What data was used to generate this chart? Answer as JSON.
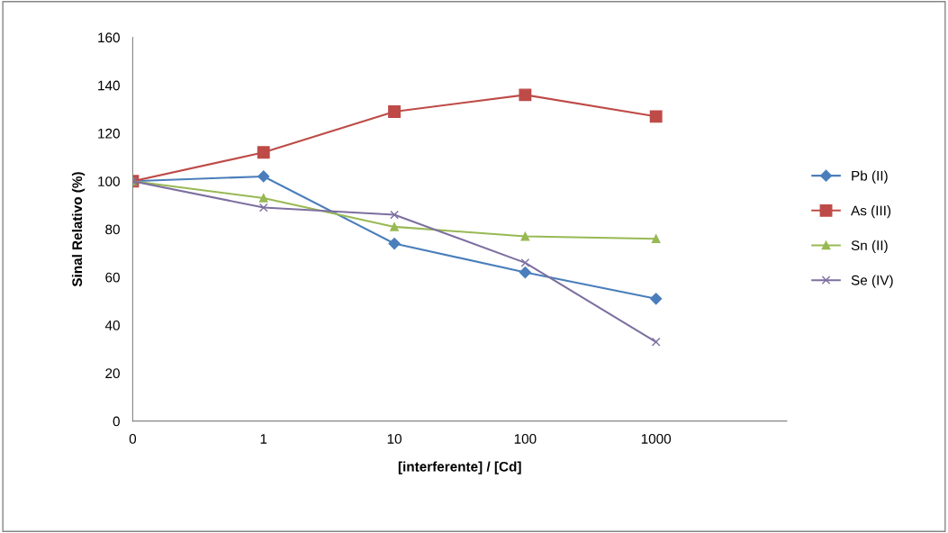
{
  "chart_data": {
    "type": "line",
    "xlabel": "[interferente] / [Cd]",
    "ylabel": "Sinal Relativo (%)",
    "categories": [
      "0",
      "1",
      "10",
      "100",
      "1000",
      null
    ],
    "ylim": [
      0,
      160
    ],
    "yticks": [
      0,
      20,
      40,
      60,
      80,
      100,
      120,
      140,
      160
    ],
    "grid": false,
    "legend": "right",
    "series": [
      {
        "name": "Pb (II)",
        "color": "#4a7ebb",
        "marker": "diamond",
        "values": [
          100,
          102,
          74,
          62,
          51,
          null
        ]
      },
      {
        "name": "As (III)",
        "color": "#be4b48",
        "marker": "square",
        "values": [
          100,
          112,
          129,
          136,
          127,
          null
        ]
      },
      {
        "name": "Sn (II)",
        "color": "#98b954",
        "marker": "triangle",
        "values": [
          100,
          93,
          81,
          77,
          76,
          null
        ]
      },
      {
        "name": "Se (IV)",
        "color": "#7d6fa0",
        "marker": "cross",
        "values": [
          100,
          89,
          86,
          66,
          33,
          null
        ]
      }
    ]
  }
}
